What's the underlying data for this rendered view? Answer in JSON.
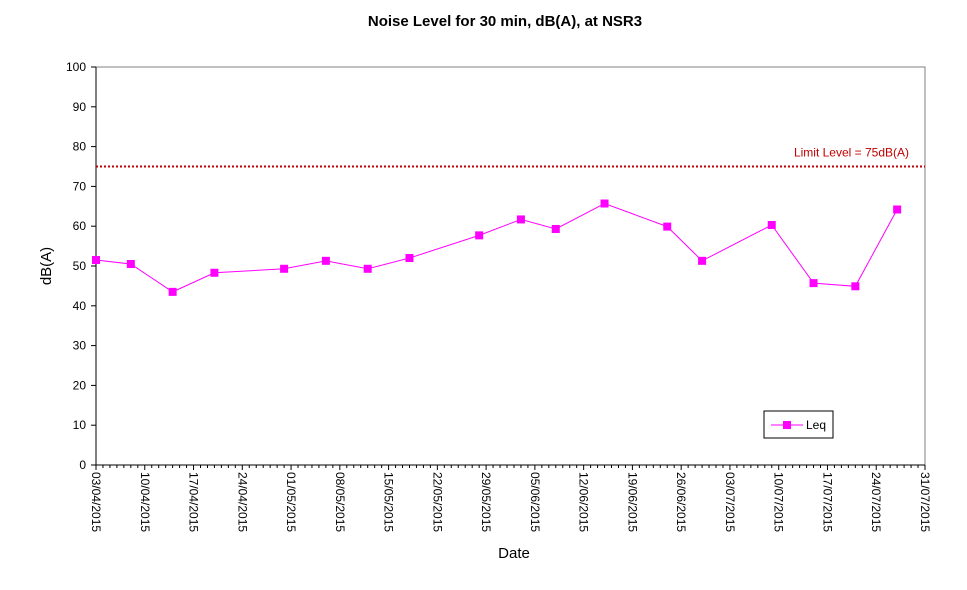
{
  "chart_data": {
    "type": "line",
    "title": "Noise Level for 30 min, dB(A), at NSR3",
    "xlabel": "Date",
    "ylabel": "dB(A)",
    "ylim": [
      0,
      100
    ],
    "yticks": [
      0,
      10,
      20,
      30,
      40,
      50,
      60,
      70,
      80,
      90,
      100
    ],
    "xlim": [
      "2015-04-03",
      "2015-07-31"
    ],
    "xtick_labels": [
      "03/04/2015",
      "10/04/2015",
      "17/04/2015",
      "24/04/2015",
      "01/05/2015",
      "08/05/2015",
      "15/05/2015",
      "22/05/2015",
      "29/05/2015",
      "05/06/2015",
      "12/06/2015",
      "19/06/2015",
      "26/06/2015",
      "03/07/2015",
      "10/07/2015",
      "17/07/2015",
      "24/07/2015",
      "31/07/2015"
    ],
    "grid": false,
    "legend_position": "bottom-right",
    "colors": {
      "series": "#ff00ff",
      "limit": "#c00000",
      "axis": "#000000"
    },
    "limit_line": {
      "value": 75,
      "label": "Limit Level  = 75dB(A)"
    },
    "series": [
      {
        "name": "Leq",
        "x": [
          "2015-04-03",
          "2015-04-08",
          "2015-04-14",
          "2015-04-20",
          "2015-04-30",
          "2015-05-06",
          "2015-05-12",
          "2015-05-18",
          "2015-05-28",
          "2015-06-03",
          "2015-06-08",
          "2015-06-15",
          "2015-06-24",
          "2015-06-29",
          "2015-07-09",
          "2015-07-15",
          "2015-07-21",
          "2015-07-27"
        ],
        "y": [
          51.5,
          50.5,
          43.5,
          48.3,
          49.3,
          51.3,
          49.3,
          52.0,
          57.7,
          61.7,
          59.3,
          65.7,
          59.9,
          51.3,
          60.3,
          45.7,
          44.9,
          64.2
        ]
      }
    ]
  }
}
